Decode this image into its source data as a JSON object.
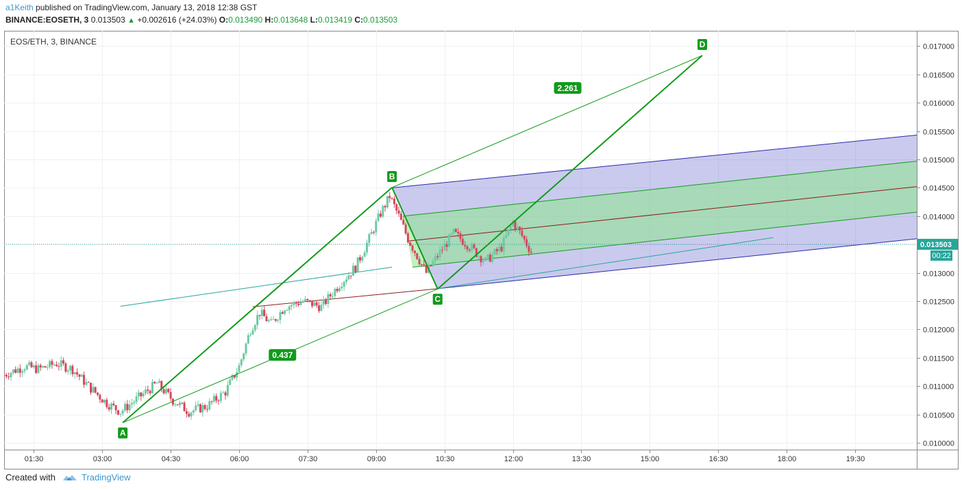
{
  "header": {
    "user": "a1Keith",
    "published": " published on TradingView.com, January 13, 2018 12:38 GST",
    "symbol": "BINANCE:EOSETH, 3",
    "last": "0.013503",
    "change": "+0.002616 (+24.03%)",
    "o_label": "O:",
    "o": "0.013490",
    "h_label": "H:",
    "h": "0.013648",
    "l_label": "L:",
    "l": "0.013419",
    "c_label": "C:",
    "c": "0.013503"
  },
  "footer": {
    "created_with": "Created with",
    "brand": "TradingView"
  },
  "colors": {
    "up": "#6cc9a4",
    "down": "#d6465c",
    "pattern": "#119b1c",
    "fork": "#2929a8",
    "median": "#8b1a1a",
    "teal": "#26a69a",
    "price_tag": "#26a69a"
  },
  "chart_data": {
    "type": "candlestick",
    "title": "EOS/ETH, 3, BINANCE",
    "ylim": [
      0.00988,
      0.01727
    ],
    "xlim": [
      0.85,
      20.85
    ],
    "x_unit": "hours (Jan 13, 2018)",
    "yticks": [
      "0.017000",
      "0.016500",
      "0.016000",
      "0.015500",
      "0.015000",
      "0.014500",
      "0.014000",
      "0.013500",
      "0.013000",
      "0.012500",
      "0.012000",
      "0.011500",
      "0.011000",
      "0.010500",
      "0.010000"
    ],
    "xticks": [
      {
        "t": 1.5,
        "label": "01:30"
      },
      {
        "t": 3,
        "label": "03:00"
      },
      {
        "t": 4.5,
        "label": "04:30"
      },
      {
        "t": 6,
        "label": "06:00"
      },
      {
        "t": 7.5,
        "label": "07:30"
      },
      {
        "t": 9,
        "label": "09:00"
      },
      {
        "t": 10.5,
        "label": "10:30"
      },
      {
        "t": 12,
        "label": "12:00"
      },
      {
        "t": 13.5,
        "label": "13:30"
      },
      {
        "t": 15,
        "label": "15:00"
      },
      {
        "t": 16.5,
        "label": "16:30"
      },
      {
        "t": 18,
        "label": "18:00"
      },
      {
        "t": 19.5,
        "label": "19:30"
      }
    ],
    "last_price": {
      "value": 0.013503,
      "label": "0.013503",
      "countdown": "00:22"
    },
    "ohlc_path": [
      [
        0.85,
        0.0112
      ],
      [
        1.3,
        0.01135
      ],
      [
        1.6,
        0.0113
      ],
      [
        2.0,
        0.0114
      ],
      [
        2.35,
        0.0113
      ],
      [
        2.7,
        0.011
      ],
      [
        3.1,
        0.0107
      ],
      [
        3.4,
        0.01055
      ],
      [
        3.8,
        0.0108
      ],
      [
        4.2,
        0.01105
      ],
      [
        4.55,
        0.01075
      ],
      [
        4.9,
        0.01055
      ],
      [
        5.3,
        0.01065
      ],
      [
        5.7,
        0.0109
      ],
      [
        6.0,
        0.01135
      ],
      [
        6.25,
        0.012
      ],
      [
        6.45,
        0.0123
      ],
      [
        6.7,
        0.0121
      ],
      [
        7.0,
        0.0124
      ],
      [
        7.4,
        0.0125
      ],
      [
        7.8,
        0.0124
      ],
      [
        8.2,
        0.0128
      ],
      [
        8.55,
        0.0131
      ],
      [
        8.85,
        0.0136
      ],
      [
        9.1,
        0.01405
      ],
      [
        9.3,
        0.01435
      ],
      [
        9.5,
        0.014
      ],
      [
        9.7,
        0.0136
      ],
      [
        9.9,
        0.0133
      ],
      [
        10.1,
        0.013
      ],
      [
        10.35,
        0.0133
      ],
      [
        10.7,
        0.0137
      ],
      [
        11.0,
        0.0135
      ],
      [
        11.4,
        0.0132
      ],
      [
        11.75,
        0.01345
      ],
      [
        12.0,
        0.0139
      ],
      [
        12.2,
        0.01365
      ],
      [
        12.45,
        0.0133
      ]
    ],
    "pattern": {
      "points": [
        {
          "label": "A",
          "t": 3.45,
          "v": 0.010355
        },
        {
          "label": "B",
          "t": 9.35,
          "v": 0.014505
        },
        {
          "label": "C",
          "t": 10.35,
          "v": 0.012715
        },
        {
          "label": "D",
          "t": 16.15,
          "v": 0.016835
        }
      ],
      "ratios": [
        {
          "label": "0.437",
          "t": 6.95,
          "v": 0.011545
        },
        {
          "label": "2.261",
          "t": 13.2,
          "v": 0.016255
        }
      ]
    },
    "pitchfork": {
      "upper_outer": [
        [
          9.35,
          0.0145
        ],
        [
          20.85,
          0.01543
        ]
      ],
      "upper_inner": [
        [
          9.6,
          0.014
        ],
        [
          20.85,
          0.01497
        ]
      ],
      "median": [
        [
          9.7,
          0.01356
        ],
        [
          20.85,
          0.01452
        ]
      ],
      "lower_inner": [
        [
          9.8,
          0.0131
        ],
        [
          20.85,
          0.01407
        ]
      ],
      "lower_outer": [
        [
          10.35,
          0.01272
        ],
        [
          20.85,
          0.0136
        ]
      ]
    },
    "median_from_A": [
      [
        6.3,
        0.0124
      ],
      [
        10.35,
        0.01272
      ]
    ],
    "trend_lines": [
      {
        "from": [
          3.4,
          0.01241
        ],
        "to": [
          9.35,
          0.0131
        ]
      },
      {
        "from": [
          10.35,
          0.01272
        ],
        "to": [
          17.7,
          0.01362
        ]
      }
    ]
  }
}
